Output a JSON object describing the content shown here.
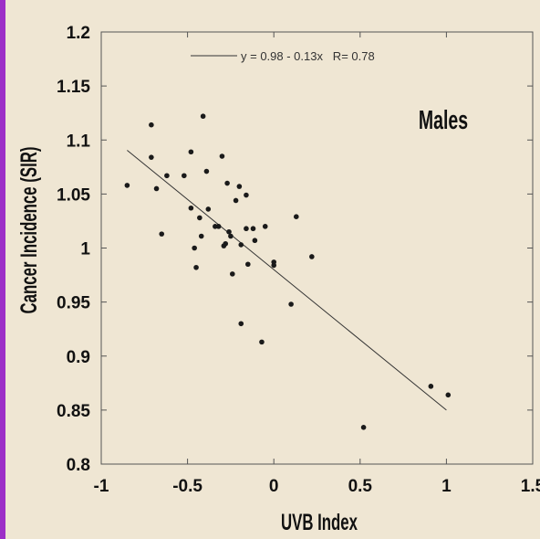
{
  "colors": {
    "background": "#efe6d3",
    "accent_bar": "#9d2fc7",
    "points": "#1a1a1a",
    "line": "#333333"
  },
  "chart_data": {
    "type": "scatter",
    "title": "",
    "panel_label": "Males",
    "xlabel": "UVB Index",
    "ylabel": "Cancer Incidence (SIR)",
    "xlim": [
      -1,
      1.5
    ],
    "ylim": [
      0.8,
      1.2
    ],
    "x_ticks": [
      -1,
      -0.5,
      0,
      0.5,
      1,
      1.5
    ],
    "x_tick_labels": [
      "-1",
      "-0.5",
      "0",
      "0.5",
      "1",
      "1.5"
    ],
    "y_ticks": [
      0.8,
      0.85,
      0.9,
      0.95,
      1,
      1.05,
      1.1,
      1.15,
      1.2
    ],
    "y_tick_labels": [
      "0.8",
      "0.85",
      "0.9",
      "0.95",
      "1",
      "1.05",
      "1.1",
      "1.15",
      "1.2"
    ],
    "grid": false,
    "legend": {
      "position": "top",
      "label": "y = 0.98 - 0.13x   R= 0.78"
    },
    "fit_line": {
      "intercept": 0.98,
      "slope": -0.13,
      "x_range": [
        -0.85,
        1.0
      ]
    },
    "points": [
      {
        "x": -0.85,
        "y": 1.058
      },
      {
        "x": -0.71,
        "y": 1.114
      },
      {
        "x": -0.71,
        "y": 1.084
      },
      {
        "x": -0.68,
        "y": 1.055
      },
      {
        "x": -0.65,
        "y": 1.013
      },
      {
        "x": -0.62,
        "y": 1.067
      },
      {
        "x": -0.52,
        "y": 1.067
      },
      {
        "x": -0.48,
        "y": 1.089
      },
      {
        "x": -0.48,
        "y": 1.037
      },
      {
        "x": -0.46,
        "y": 1.0
      },
      {
        "x": -0.45,
        "y": 0.982
      },
      {
        "x": -0.43,
        "y": 1.028
      },
      {
        "x": -0.42,
        "y": 1.011
      },
      {
        "x": -0.41,
        "y": 1.122
      },
      {
        "x": -0.39,
        "y": 1.071
      },
      {
        "x": -0.38,
        "y": 1.036
      },
      {
        "x": -0.34,
        "y": 1.02
      },
      {
        "x": -0.32,
        "y": 1.02
      },
      {
        "x": -0.3,
        "y": 1.085
      },
      {
        "x": -0.29,
        "y": 1.002
      },
      {
        "x": -0.28,
        "y": 1.004
      },
      {
        "x": -0.27,
        "y": 1.06
      },
      {
        "x": -0.26,
        "y": 1.015
      },
      {
        "x": -0.25,
        "y": 1.011
      },
      {
        "x": -0.24,
        "y": 0.976
      },
      {
        "x": -0.22,
        "y": 1.044
      },
      {
        "x": -0.2,
        "y": 1.057
      },
      {
        "x": -0.19,
        "y": 0.93
      },
      {
        "x": -0.19,
        "y": 1.003
      },
      {
        "x": -0.16,
        "y": 1.018
      },
      {
        "x": -0.16,
        "y": 1.049
      },
      {
        "x": -0.15,
        "y": 0.985
      },
      {
        "x": -0.12,
        "y": 1.018
      },
      {
        "x": -0.11,
        "y": 1.007
      },
      {
        "x": -0.07,
        "y": 0.913
      },
      {
        "x": -0.05,
        "y": 1.02
      },
      {
        "x": 0.0,
        "y": 0.987
      },
      {
        "x": 0.0,
        "y": 0.984
      },
      {
        "x": 0.1,
        "y": 0.948
      },
      {
        "x": 0.13,
        "y": 1.029
      },
      {
        "x": 0.22,
        "y": 0.992
      },
      {
        "x": 0.52,
        "y": 0.834
      },
      {
        "x": 0.91,
        "y": 0.872
      },
      {
        "x": 1.01,
        "y": 0.864
      }
    ]
  }
}
